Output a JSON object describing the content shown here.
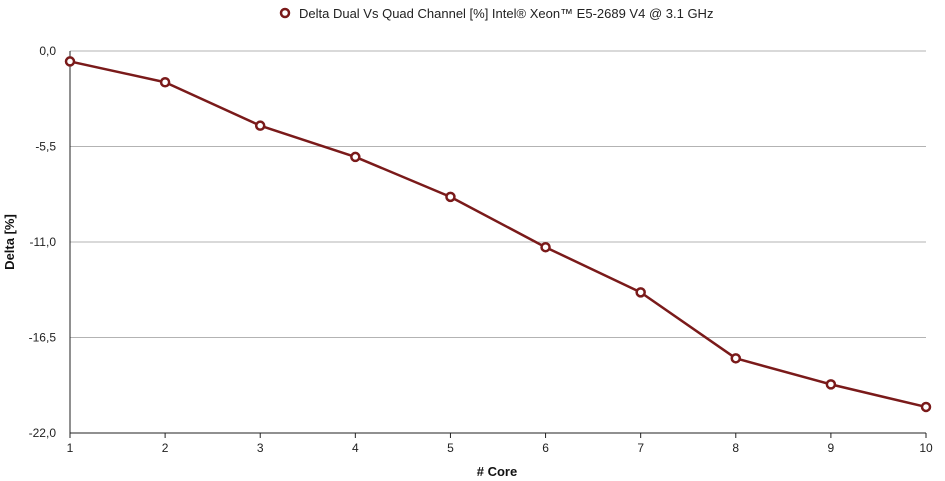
{
  "chart_data": {
    "type": "line",
    "legend": {
      "position": "top",
      "label": "Delta Dual Vs Quad Channel [%] Intel® Xeon™ E5-2689 V4 @ 3.1 GHz"
    },
    "xlabel": "# Core",
    "ylabel": "Delta [%]",
    "x": [
      1,
      2,
      3,
      4,
      5,
      6,
      7,
      8,
      9,
      10
    ],
    "x_tick_labels": [
      "1",
      "2",
      "3",
      "4",
      "5",
      "6",
      "7",
      "8",
      "9",
      "10"
    ],
    "xlim": [
      1,
      10
    ],
    "ylim": [
      -22,
      0
    ],
    "y_ticks": [
      0,
      -5.5,
      -11,
      -16.5,
      -22
    ],
    "y_tick_labels": [
      "0,0",
      "-5,5",
      "-11,0",
      "-16,5",
      "-22,0"
    ],
    "grid": true,
    "series": [
      {
        "name": "Delta Dual Vs Quad Channel [%] Intel® Xeon™ E5-2689 V4 @ 3.1 GHz",
        "color": "#7a1a1a",
        "values": [
          -0.6,
          -1.8,
          -4.3,
          -6.1,
          -8.4,
          -11.3,
          -13.9,
          -17.7,
          -19.2,
          -20.5
        ]
      }
    ]
  }
}
